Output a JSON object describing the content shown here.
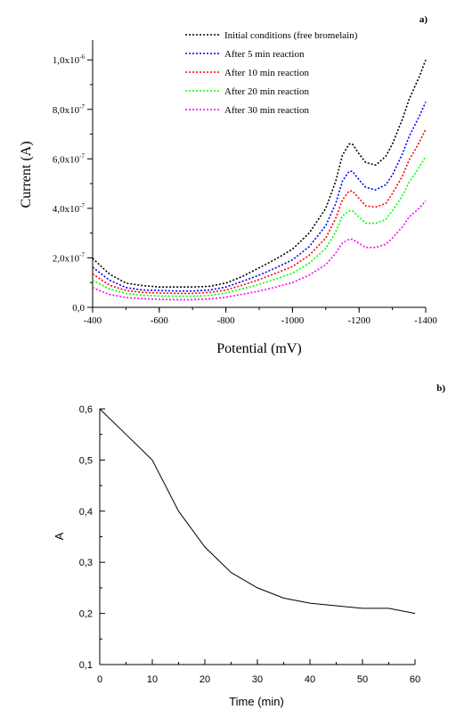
{
  "chart_data": [
    {
      "type": "line",
      "panel_label": "a)",
      "title": "",
      "xlabel": "Potential (mV)",
      "ylabel": "Current (A)",
      "xlim": [
        -400,
        -1400
      ],
      "ylim": [
        0,
        1.08e-06
      ],
      "x_ticks": [
        -400,
        -600,
        -800,
        -1000,
        -1200,
        -1400
      ],
      "x_tick_labels": [
        "-400",
        "-600",
        "-800",
        "-1000",
        "-1200",
        "-1400"
      ],
      "y_ticks": [
        0,
        2e-07,
        4e-07,
        6e-07,
        8e-07,
        1e-06
      ],
      "y_tick_labels": [
        {
          "mantissa": "0,0",
          "exp": ""
        },
        {
          "mantissa": "2,0x10",
          "exp": "-7"
        },
        {
          "mantissa": "4,0x10",
          "exp": "-7"
        },
        {
          "mantissa": "6,0x10",
          "exp": "-7"
        },
        {
          "mantissa": "8,0x10",
          "exp": "-7"
        },
        {
          "mantissa": "1,0x10",
          "exp": "-6"
        }
      ],
      "grid": false,
      "legend_position": "top-right",
      "line_style": "dotted",
      "x": [
        -400,
        -450,
        -500,
        -550,
        -600,
        -650,
        -700,
        -750,
        -800,
        -850,
        -900,
        -950,
        -1000,
        -1050,
        -1100,
        -1130,
        -1150,
        -1170,
        -1180,
        -1200,
        -1220,
        -1250,
        -1280,
        -1300,
        -1330,
        -1350,
        -1380,
        -1400
      ],
      "series": [
        {
          "name": "Initial conditions (free bromelain)",
          "color": "#000000",
          "values": [
            1.98e-07,
            1.35e-07,
            9.8e-08,
            8.8e-08,
            8.2e-08,
            8.2e-08,
            8.2e-08,
            8.5e-08,
            9.8e-08,
            1.25e-07,
            1.6e-07,
            1.95e-07,
            2.35e-07,
            3e-07,
            4e-07,
            5.1e-07,
            6.15e-07,
            6.6e-07,
            6.6e-07,
            6.2e-07,
            5.85e-07,
            5.75e-07,
            6.1e-07,
            6.6e-07,
            7.6e-07,
            8.4e-07,
            9.3e-07,
            1e-06
          ]
        },
        {
          "name": "After 5 min reaction",
          "color": "#0000ff",
          "values": [
            1.62e-07,
            1.1e-07,
            8e-08,
            7e-08,
            6.8e-08,
            6.6e-08,
            6.6e-08,
            7e-08,
            8.2e-08,
            1.05e-07,
            1.3e-07,
            1.6e-07,
            1.92e-07,
            2.45e-07,
            3.3e-07,
            4.2e-07,
            5.1e-07,
            5.5e-07,
            5.5e-07,
            5.15e-07,
            4.85e-07,
            4.75e-07,
            4.95e-07,
            5.35e-07,
            6.2e-07,
            6.9e-07,
            7.7e-07,
            8.3e-07
          ]
        },
        {
          "name": "After 10 min reaction",
          "color": "#ff0000",
          "values": [
            1.35e-07,
            9e-08,
            6.8e-08,
            6e-08,
            5.8e-08,
            5.6e-08,
            5.6e-08,
            6e-08,
            7e-08,
            9e-08,
            1.12e-07,
            1.38e-07,
            1.65e-07,
            2.1e-07,
            2.8e-07,
            3.6e-07,
            4.35e-07,
            4.7e-07,
            4.7e-07,
            4.4e-07,
            4.1e-07,
            4.05e-07,
            4.2e-07,
            4.6e-07,
            5.3e-07,
            5.95e-07,
            6.65e-07,
            7.2e-07
          ]
        },
        {
          "name": "After 20 min reaction",
          "color": "#00ff00",
          "values": [
            1.1e-07,
            7.5e-08,
            5.6e-08,
            4.9e-08,
            4.6e-08,
            4.5e-08,
            4.5e-08,
            4.8e-08,
            5.8e-08,
            7.5e-08,
            9.3e-08,
            1.14e-07,
            1.38e-07,
            1.78e-07,
            2.38e-07,
            3.05e-07,
            3.7e-07,
            3.9e-07,
            3.9e-07,
            3.65e-07,
            3.4e-07,
            3.4e-07,
            3.55e-07,
            3.9e-07,
            4.5e-07,
            5.05e-07,
            5.65e-07,
            6.1e-07
          ]
        },
        {
          "name": "After 30 min reaction",
          "color": "#ff00ff",
          "values": [
            8e-08,
            5.2e-08,
            4e-08,
            3.5e-08,
            3.2e-08,
            3.1e-08,
            3.1e-08,
            3.4e-08,
            4.1e-08,
            5.3e-08,
            6.6e-08,
            8.2e-08,
            1e-07,
            1.3e-07,
            1.72e-07,
            2.2e-07,
            2.6e-07,
            2.75e-07,
            2.75e-07,
            2.58e-07,
            2.42e-07,
            2.42e-07,
            2.55e-07,
            2.8e-07,
            3.25e-07,
            3.65e-07,
            4e-07,
            4.3e-07
          ]
        }
      ]
    },
    {
      "type": "line",
      "panel_label": "b)",
      "title": "",
      "xlabel": "Time (min)",
      "ylabel": "A",
      "xlim": [
        0,
        60
      ],
      "ylim": [
        0.1,
        0.6
      ],
      "x_ticks": [
        0,
        10,
        20,
        30,
        40,
        50,
        60
      ],
      "x_tick_labels": [
        "0",
        "10",
        "20",
        "30",
        "40",
        "50",
        "60"
      ],
      "y_ticks": [
        0.1,
        0.2,
        0.3,
        0.4,
        0.5,
        0.6
      ],
      "y_tick_labels": [
        "0,1",
        "0,2",
        "0,3",
        "0,4",
        "0,5",
        "0,6"
      ],
      "grid": false,
      "line_style": "solid",
      "x": [
        0,
        5,
        10,
        15,
        20,
        25,
        30,
        35,
        40,
        45,
        50,
        55,
        60
      ],
      "series": [
        {
          "color": "#000000",
          "values": [
            0.6,
            0.55,
            0.5,
            0.4,
            0.33,
            0.28,
            0.25,
            0.23,
            0.22,
            0.215,
            0.21,
            0.21,
            0.2
          ]
        }
      ]
    }
  ]
}
